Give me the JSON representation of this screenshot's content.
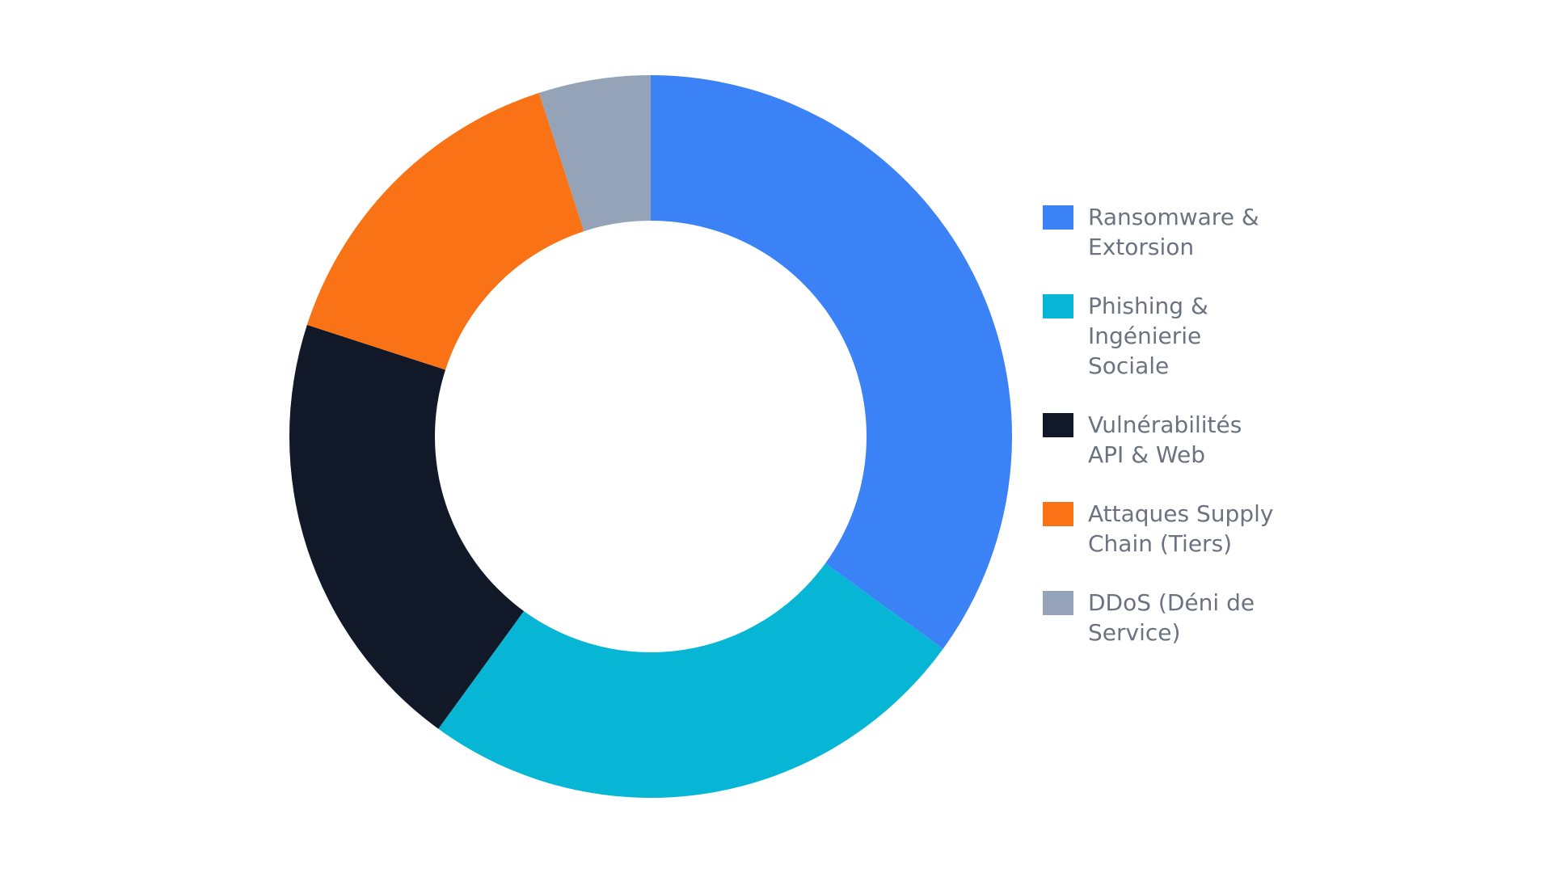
{
  "chart_data": {
    "type": "pie",
    "donut": true,
    "title": "",
    "legend_position": "right",
    "start_angle_deg": 0,
    "direction": "clockwise",
    "series": [
      {
        "name": "Ransomware & Extorsion",
        "value": 35,
        "color": "#3b82f6"
      },
      {
        "name": "Phishing & Ingénierie Sociale",
        "value": 25,
        "color": "#06b6d4"
      },
      {
        "name": "Vulnérabilités API & Web",
        "value": 20,
        "color": "#111827"
      },
      {
        "name": "Attaques Supply Chain (Tiers)",
        "value": 15,
        "color": "#f97316"
      },
      {
        "name": "DDoS (Déni de Service)",
        "value": 5,
        "color": "#94a3b8"
      }
    ]
  }
}
